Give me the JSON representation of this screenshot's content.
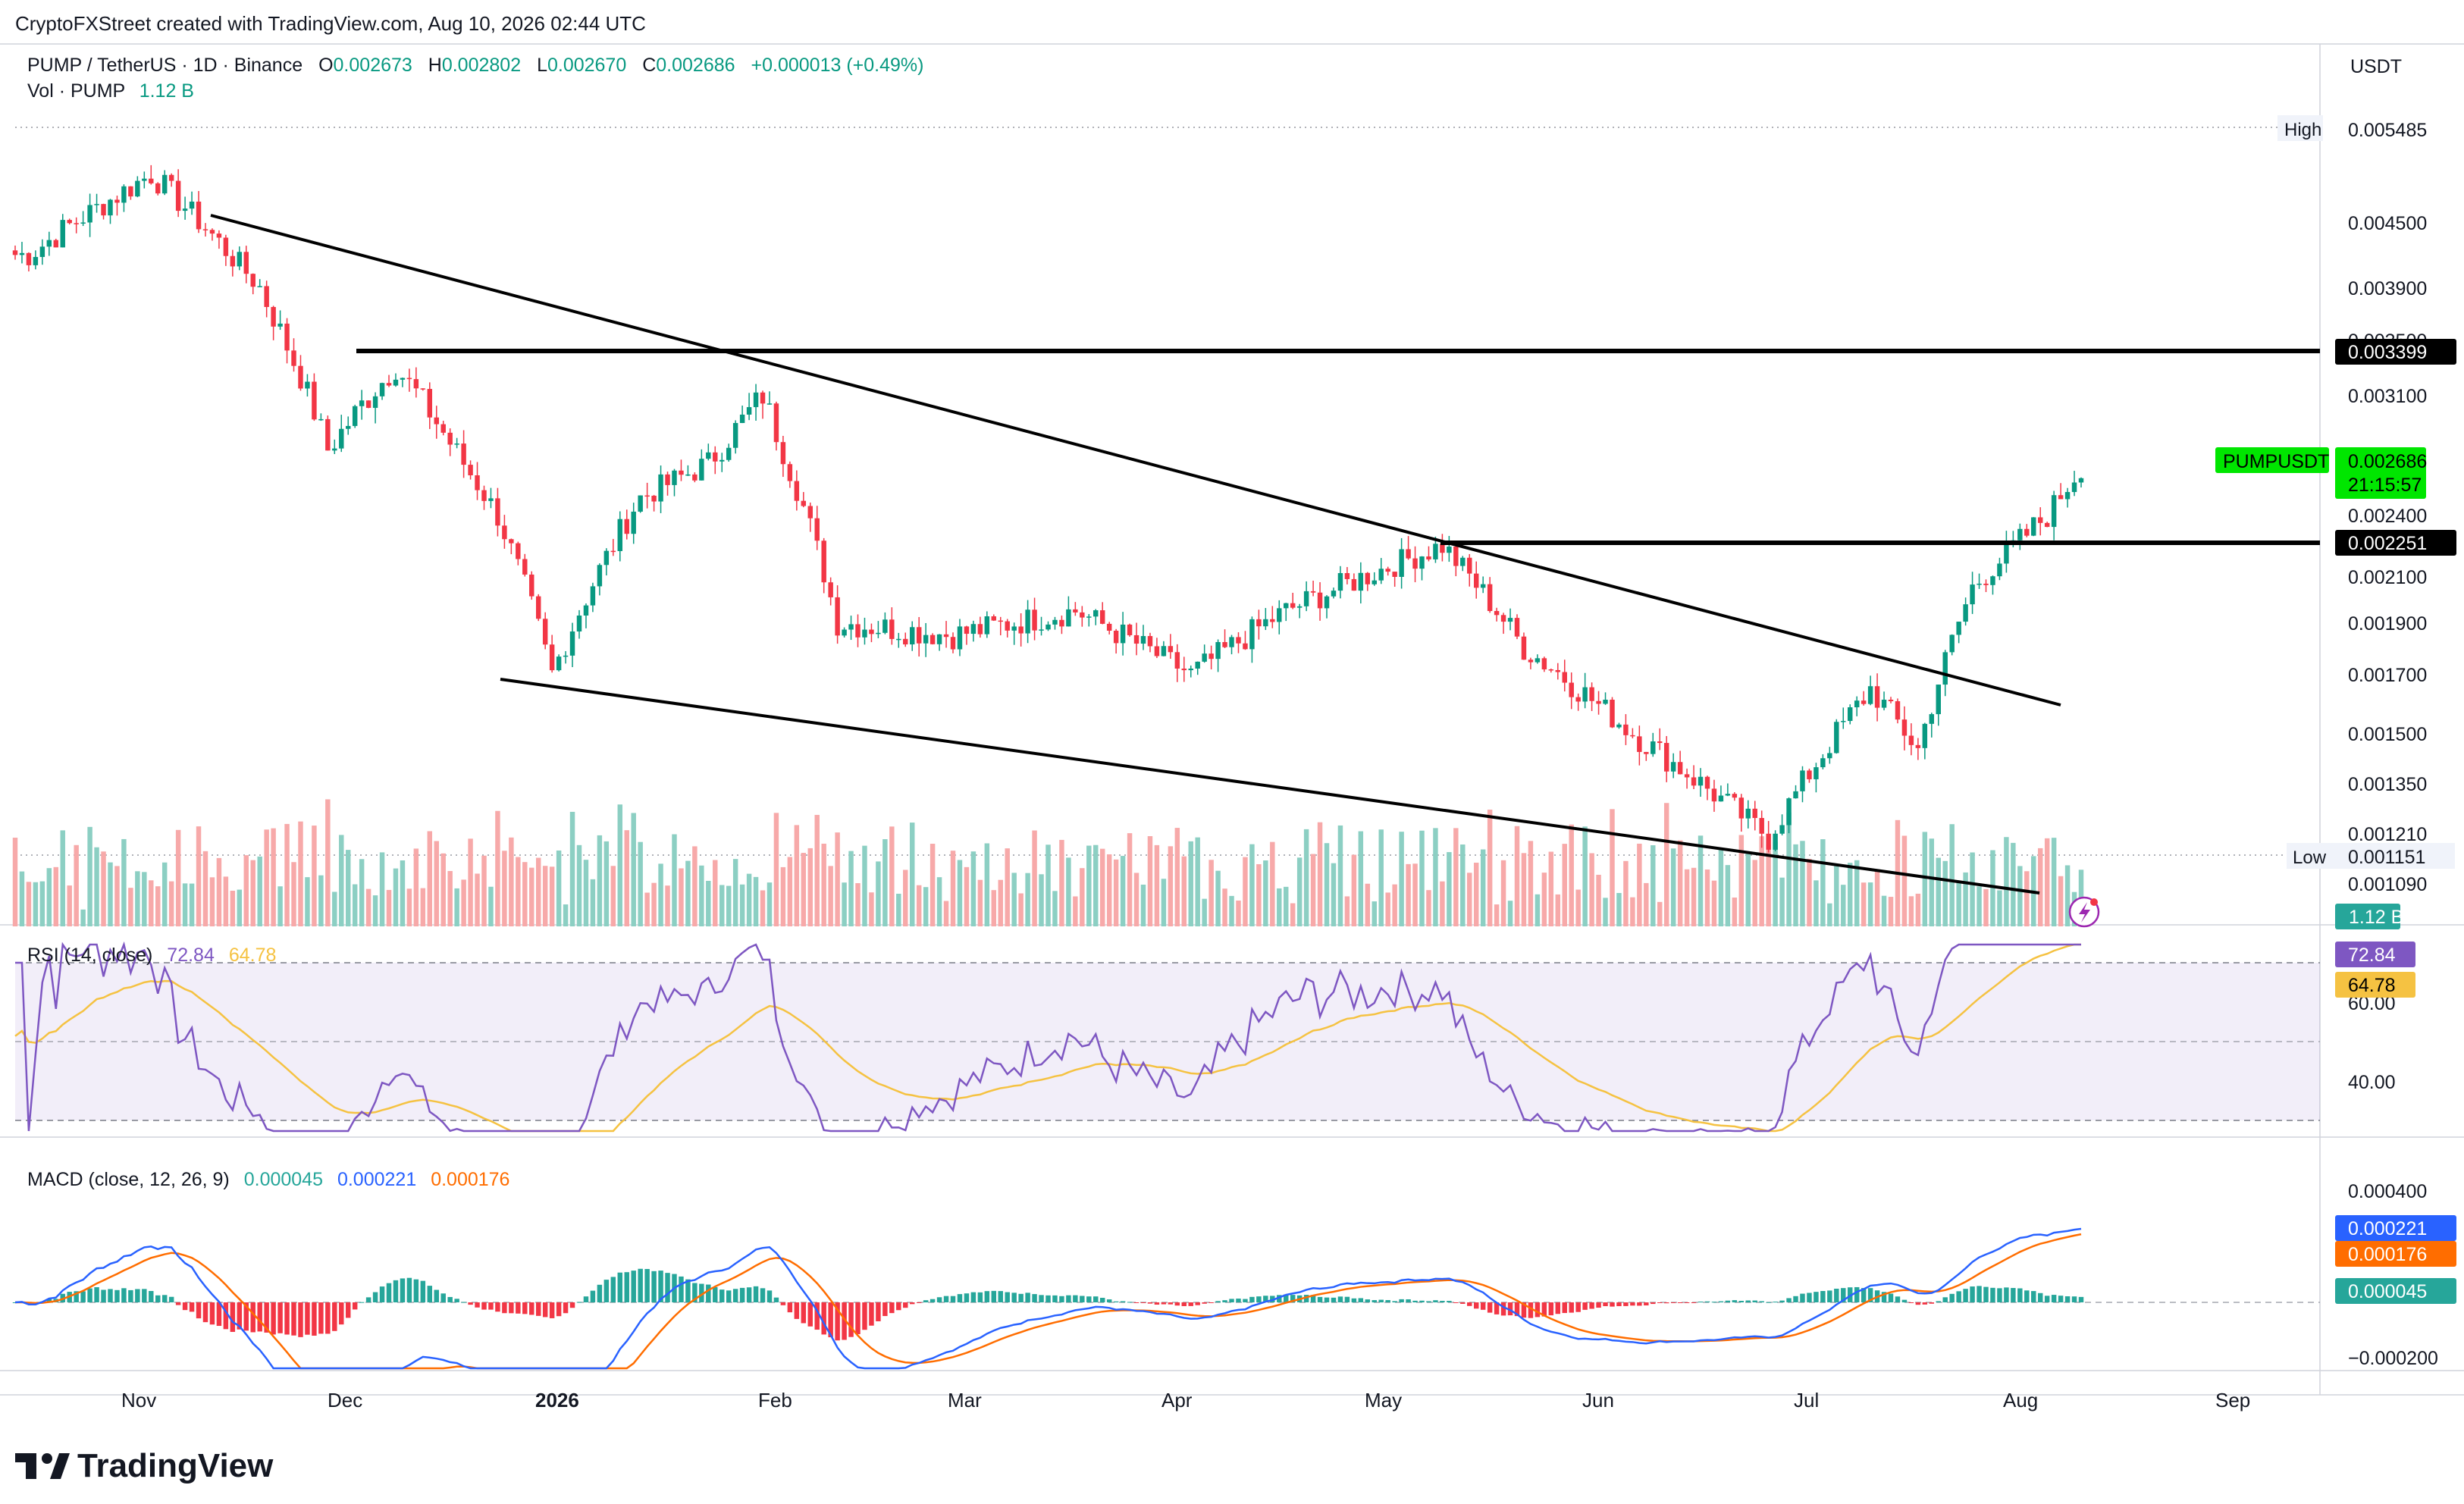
{
  "header": {
    "attribution": "CryptoFXStreet created with TradingView.com, Aug 10, 2026 02:44 UTC",
    "symbol": "PUMP / TetherUS · 1D · Binance",
    "o_label": "O",
    "o_value": "0.002673",
    "h_label": "H",
    "h_value": "0.002802",
    "l_label": "L",
    "l_value": "0.002670",
    "c_label": "C",
    "c_value": "0.002686",
    "change": "+0.000013 (+0.49%)",
    "vol_label": "Vol · PUMP",
    "vol_value": "1.12 B"
  },
  "price_axis": {
    "currency": "USDT",
    "ticks": [
      "0.004500",
      "0.003900",
      "0.003500",
      "0.003100",
      "0.002400",
      "0.002100",
      "0.001900",
      "0.001700",
      "0.001500",
      "0.001350",
      "0.001210",
      "0.001090"
    ],
    "high_label": "High",
    "high_value": "0.005485",
    "low_label": "Low",
    "low_value": "0.001151",
    "resistance_label": "0.003399",
    "support_label": "0.002251",
    "ticker_tag": "PUMPUSDT",
    "last_price": "0.002686",
    "countdown": "21:15:57",
    "volume_tag": "1.12 B"
  },
  "rsi": {
    "title": "RSI (14, close)",
    "rsi_value": "72.84",
    "ma_value": "64.78",
    "ticks": [
      "60.00",
      "40.00"
    ],
    "tag_rsi": "72.84",
    "tag_ma": "64.78"
  },
  "macd": {
    "title": "MACD (close, 12, 26, 9)",
    "hist_value": "0.000045",
    "macd_value": "0.000221",
    "signal_value": "0.000176",
    "ticks": [
      "0.000400",
      "−0.000200"
    ],
    "tag_macd": "0.000221",
    "tag_signal": "0.000176",
    "tag_hist": "0.000045"
  },
  "time_axis": [
    "Nov",
    "Dec",
    "2026",
    "Feb",
    "Mar",
    "Apr",
    "May",
    "Jun",
    "Jul",
    "Aug",
    "Sep"
  ],
  "footer": {
    "logo_text": "TradingView"
  },
  "colors": {
    "up": "#089981",
    "down": "#f23645",
    "vol_up": "#8ccfc3",
    "vol_down": "#f7a9a9",
    "rsi": "#7e57c2",
    "rsi_ma": "#f5c242",
    "macd": "#2962ff",
    "signal": "#ff6d00",
    "tag_green": "#00e600"
  },
  "chart_data": {
    "type": "candlestick",
    "symbol": "PUMP / TetherUS",
    "interval": "1D",
    "x_range": [
      "2025-10-10",
      "2026-08-10"
    ],
    "ohlc_sampled": [
      {
        "date": "2025-10-12",
        "close": 0.0042
      },
      {
        "date": "2025-10-30",
        "close": 0.005
      },
      {
        "date": "2025-11-15",
        "close": 0.0039
      },
      {
        "date": "2025-11-25",
        "close": 0.00278
      },
      {
        "date": "2025-12-05",
        "close": 0.0033
      },
      {
        "date": "2025-12-20",
        "close": 0.0024
      },
      {
        "date": "2025-12-28",
        "close": 0.0017
      },
      {
        "date": "2026-01-10",
        "close": 0.0025
      },
      {
        "date": "2026-01-20",
        "close": 0.0027
      },
      {
        "date": "2026-01-28",
        "close": 0.0031
      },
      {
        "date": "2026-02-08",
        "close": 0.0019
      },
      {
        "date": "2026-02-25",
        "close": 0.00185
      },
      {
        "date": "2026-03-15",
        "close": 0.00195
      },
      {
        "date": "2026-04-01",
        "close": 0.0017
      },
      {
        "date": "2026-04-15",
        "close": 0.00195
      },
      {
        "date": "2026-05-08",
        "close": 0.00225
      },
      {
        "date": "2026-05-20",
        "close": 0.0018
      },
      {
        "date": "2026-06-05",
        "close": 0.0015
      },
      {
        "date": "2026-06-25",
        "close": 0.0012
      },
      {
        "date": "2026-07-10",
        "close": 0.00165
      },
      {
        "date": "2026-07-17",
        "close": 0.00145
      },
      {
        "date": "2026-07-25",
        "close": 0.00205
      },
      {
        "date": "2026-08-05",
        "close": 0.0024
      },
      {
        "date": "2026-08-10",
        "open": 0.002673,
        "high": 0.002802,
        "low": 0.00267,
        "close": 0.002686
      }
    ],
    "all_time_high": 0.005485,
    "period_low": 0.001151,
    "horizontal_levels": [
      0.003399,
      0.002251
    ],
    "trendlines": [
      {
        "from": {
          "date": "2025-11-13",
          "price": 0.00455
        },
        "to": {
          "date": "2026-08-11",
          "price": 0.00158
        }
      },
      {
        "from": {
          "date": "2025-12-26",
          "price": 0.00168
        },
        "to": {
          "date": "2026-08-08",
          "price": 0.00108
        }
      }
    ],
    "rsi_14": {
      "last": 72.84,
      "ma": 64.78,
      "bands": [
        70,
        50,
        30
      ]
    },
    "macd": {
      "fast": 12,
      "slow": 26,
      "signal": 9,
      "hist": 4.5e-05,
      "macd": 0.000221,
      "signal_line": 0.000176
    },
    "volume_last": "1.12 B"
  }
}
